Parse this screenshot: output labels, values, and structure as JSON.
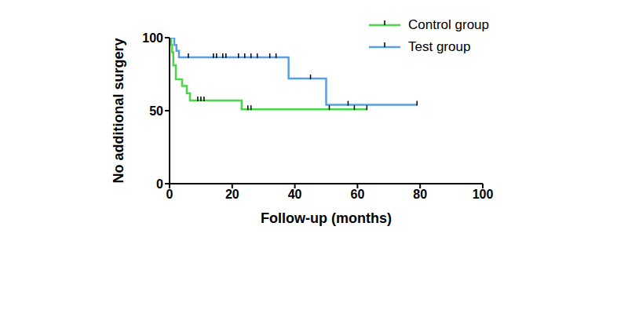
{
  "chart_data": {
    "type": "line",
    "line_style": "step",
    "x_label": "Follow-up (months)",
    "y_label": "No additional surgery",
    "xlim": [
      0,
      100
    ],
    "xticks": [
      0,
      20,
      40,
      60,
      80,
      100
    ],
    "ylim": [
      0,
      100
    ],
    "yticks": [
      0,
      50,
      100
    ],
    "grid": false,
    "legend": "upper right",
    "series": [
      {
        "name": "Control group",
        "color": "#49d649",
        "x": [
          0,
          0.5,
          0.8,
          1.2,
          2,
          4,
          5.5,
          6.5,
          23,
          63
        ],
        "values": [
          100,
          95,
          90,
          81,
          71.5,
          67,
          62,
          57,
          51,
          51
        ],
        "censored": {
          "x": [
            9,
            10,
            11,
            25,
            26,
            51,
            59,
            63
          ],
          "values": [
            57,
            57,
            57,
            51,
            51,
            51,
            51,
            51
          ]
        }
      },
      {
        "name": "Test group",
        "color": "#5a9fe0",
        "x": [
          0,
          1.5,
          2.2,
          3,
          38,
          50,
          79
        ],
        "values": [
          100,
          95,
          91,
          86.5,
          72,
          54,
          54
        ],
        "censored": {
          "x": [
            6,
            14,
            15,
            17,
            18,
            22,
            24,
            26,
            28,
            32,
            34,
            45,
            57,
            79
          ],
          "values": [
            86.5,
            86.5,
            86.5,
            86.5,
            86.5,
            86.5,
            86.5,
            86.5,
            86.5,
            86.5,
            86.5,
            72,
            54,
            54
          ]
        }
      }
    ]
  }
}
